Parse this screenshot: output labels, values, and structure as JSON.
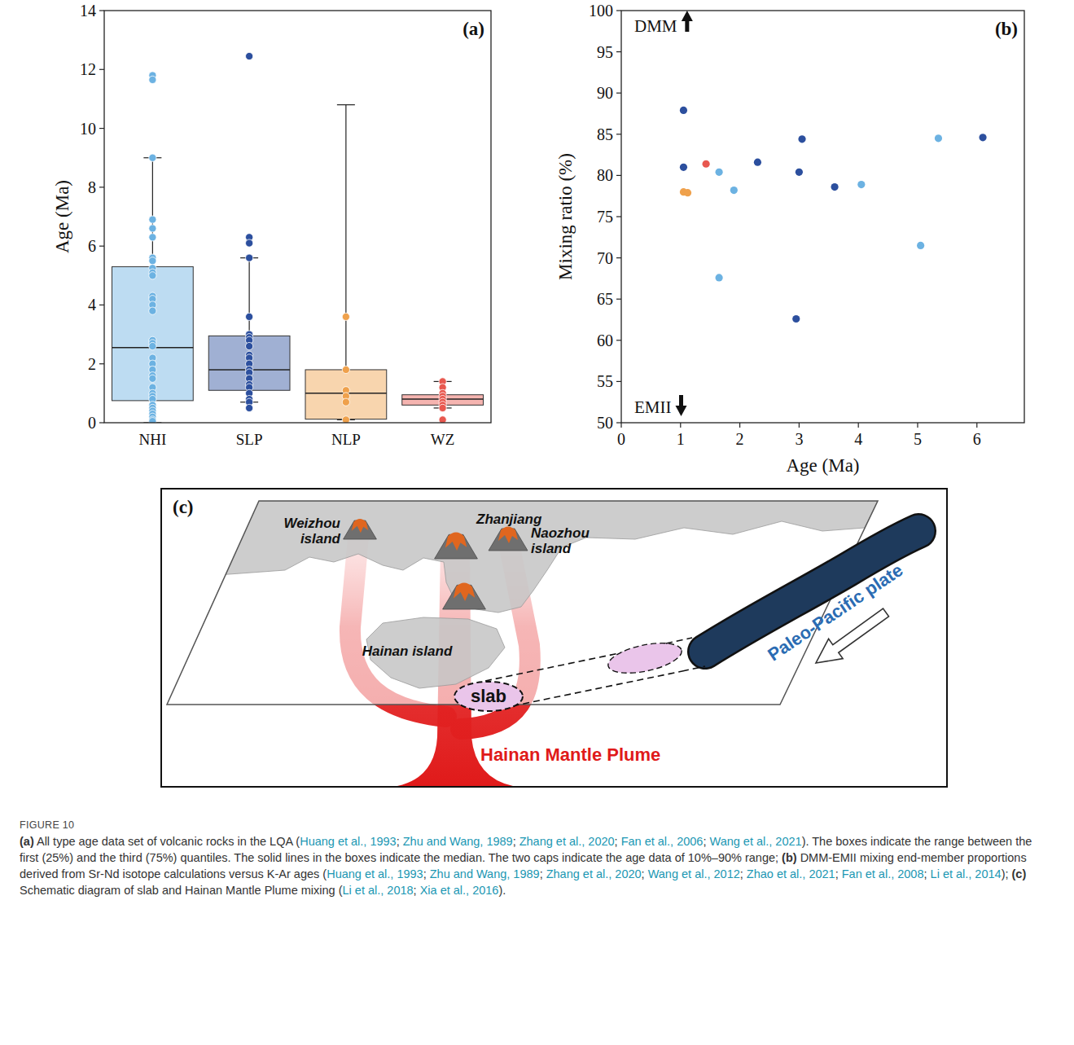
{
  "chart_data": [
    {
      "type": "box",
      "title": "(a)",
      "y_label": "Age (Ma)",
      "categories": [
        "NHI",
        "SLP",
        "NLP",
        "WZ"
      ],
      "ylim": [
        0,
        14
      ],
      "yticks": [
        0,
        2,
        4,
        6,
        8,
        10,
        12,
        14
      ],
      "series": [
        {
          "color": "#6cb2e2",
          "whisker_low": 0,
          "q1": 0.75,
          "median": 2.55,
          "q3": 5.3,
          "whisker_high": 9,
          "points": [
            11.8,
            11.65,
            9,
            6.9,
            6.6,
            6.3,
            5.6,
            5.5,
            5.25,
            5.1,
            5.0,
            4.3,
            4.2,
            4.0,
            3.8,
            2.8,
            2.7,
            2.6,
            2.2,
            2.0,
            1.8,
            1.6,
            1.5,
            1.2,
            1.0,
            0.9,
            0.8,
            0.6,
            0.5,
            0.4,
            0.3,
            0.2,
            0.1,
            0.05
          ]
        },
        {
          "color": "#2c4f9e",
          "whisker_low": 0.7,
          "q1": 1.1,
          "median": 1.8,
          "q3": 2.95,
          "whisker_high": 5.6,
          "points": [
            12.45,
            6.3,
            6.1,
            5.6,
            3.6,
            3.0,
            2.9,
            2.8,
            2.6,
            2.3,
            2.2,
            2.0,
            1.8,
            1.7,
            1.5,
            1.3,
            1.2,
            1.0,
            0.8,
            0.7,
            0.5
          ]
        },
        {
          "color": "#efa14c",
          "whisker_low": 0.1,
          "q1": 0.12,
          "median": 1.0,
          "q3": 1.8,
          "whisker_high": 10.8,
          "points": [
            3.6,
            1.8,
            1.1,
            0.9,
            0.7,
            0.1
          ]
        },
        {
          "color": "#e8584f",
          "whisker_low": 0.5,
          "q1": 0.6,
          "median": 0.8,
          "q3": 0.95,
          "whisker_high": 1.4,
          "points": [
            1.4,
            1.2,
            1.0,
            0.9,
            0.8,
            0.7,
            0.6,
            0.5,
            0.1
          ]
        }
      ]
    },
    {
      "type": "scatter",
      "title": "(b)",
      "x_label": "Age (Ma)",
      "y_label": "Mixing ratio (%)",
      "xlim": [
        0,
        6.8
      ],
      "xticks": [
        0,
        1,
        2,
        3,
        4,
        5,
        6
      ],
      "ylim": [
        50,
        100
      ],
      "yticks": [
        50,
        55,
        60,
        65,
        70,
        75,
        80,
        85,
        90,
        95,
        100
      ],
      "annotations": [
        {
          "text": "DMM",
          "y": 100
        },
        {
          "text": "EMII",
          "y": 50
        }
      ],
      "series": [
        {
          "color": "#2c4f9e",
          "x": [
            1.05,
            1.05,
            2.3,
            3.05,
            3.0,
            2.95,
            3.6,
            6.1
          ],
          "values": [
            87.9,
            81.0,
            81.6,
            84.4,
            80.4,
            62.6,
            78.6,
            84.6
          ]
        },
        {
          "color": "#6cb2e2",
          "x": [
            1.65,
            1.65,
            1.9,
            4.05,
            5.05,
            5.35
          ],
          "values": [
            80.4,
            67.6,
            78.2,
            78.9,
            71.5,
            84.5
          ]
        },
        {
          "color": "#efa14c",
          "x": [
            1.05,
            1.12
          ],
          "values": [
            78.0,
            77.9
          ]
        },
        {
          "color": "#e8584f",
          "x": [
            1.43
          ],
          "values": [
            81.4
          ]
        }
      ]
    }
  ],
  "diagram": {
    "panel_label": "(c)",
    "places": [
      {
        "label": "Weizhou island"
      },
      {
        "label": "Zhanjiang"
      },
      {
        "label": "Naozhou island"
      },
      {
        "label": "Hainan island"
      }
    ],
    "slab_label": "slab",
    "plate_label": "Paleo-Pacific plate",
    "plume_label": "Hainan Mantle Plume"
  },
  "caption": {
    "label": "FIGURE 10",
    "runs": [
      {
        "text": "(a)",
        "bold": true
      },
      {
        "text": " All type age data set of volcanic rocks in the LQA ("
      },
      {
        "text": "Huang et al., 1993",
        "ref": true
      },
      {
        "text": "; "
      },
      {
        "text": "Zhu and Wang, 1989",
        "ref": true
      },
      {
        "text": "; "
      },
      {
        "text": "Zhang et al., 2020",
        "ref": true
      },
      {
        "text": "; "
      },
      {
        "text": "Fan et al., 2006",
        "ref": true
      },
      {
        "text": "; "
      },
      {
        "text": "Wang et al., 2021",
        "ref": true
      },
      {
        "text": "). The boxes indicate the range between the first (25%) and the third (75%) quantiles. The solid lines in the boxes indicate the median. The two caps indicate the age data of 10%–90% range; "
      },
      {
        "text": "(b)",
        "bold": true
      },
      {
        "text": " DMM-EMII mixing end-member proportions derived from Sr-Nd isotope calculations versus K-Ar ages ("
      },
      {
        "text": "Huang et al., 1993",
        "ref": true
      },
      {
        "text": "; "
      },
      {
        "text": "Zhu and Wang, 1989",
        "ref": true
      },
      {
        "text": "; "
      },
      {
        "text": "Zhang et al., 2020",
        "ref": true
      },
      {
        "text": "; "
      },
      {
        "text": "Wang et al., 2012",
        "ref": true
      },
      {
        "text": "; "
      },
      {
        "text": "Zhao et al., 2021",
        "ref": true
      },
      {
        "text": "; "
      },
      {
        "text": "Fan et al., 2008",
        "ref": true
      },
      {
        "text": "; "
      },
      {
        "text": "Li et al., 2014",
        "ref": true
      },
      {
        "text": "); "
      },
      {
        "text": "(c)",
        "bold": true
      },
      {
        "text": " Schematic diagram of slab and Hainan Mantle Plume mixing ("
      },
      {
        "text": "Li et al., 2018",
        "ref": true
      },
      {
        "text": "; "
      },
      {
        "text": "Xia et al., 2016",
        "ref": true
      },
      {
        "text": ")."
      }
    ]
  }
}
